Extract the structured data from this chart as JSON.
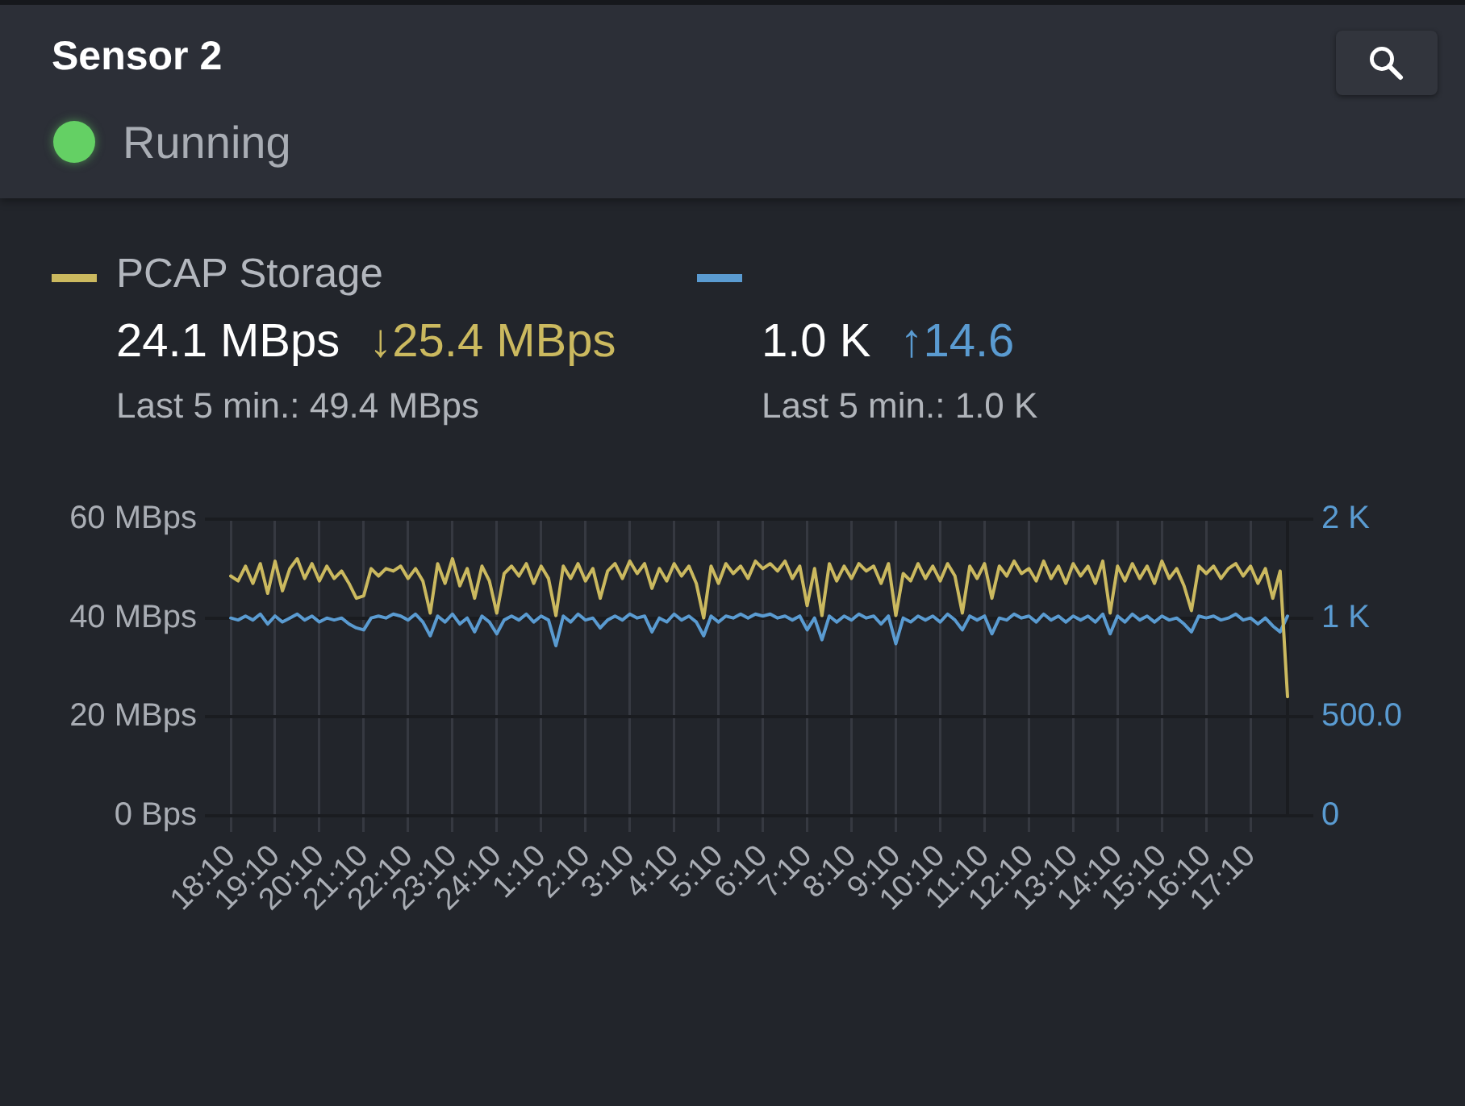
{
  "chart_data": {
    "type": "line",
    "title": "Sensor 2",
    "subtitle": "Running",
    "annotations": [
      "24.1 MBps",
      "↓25.4 MBps",
      "Last 5 min.: 49.4 MBps",
      "1.0 K",
      "↑14.6",
      "Last 5 min.: 1.0 K"
    ],
    "categories": [
      "18:10",
      null,
      null,
      null,
      null,
      null,
      "19:10",
      null,
      null,
      null,
      null,
      null,
      "20:10",
      null,
      null,
      null,
      null,
      null,
      "21:10",
      null,
      null,
      null,
      null,
      null,
      "22:10",
      null,
      null,
      null,
      null,
      null,
      "23:10",
      null,
      null,
      null,
      null,
      null,
      "24:10",
      null,
      null,
      null,
      null,
      null,
      "1:10",
      null,
      null,
      null,
      null,
      null,
      "2:10",
      null,
      null,
      null,
      null,
      null,
      "3:10",
      null,
      null,
      null,
      null,
      null,
      "4:10",
      null,
      null,
      null,
      null,
      null,
      "5:10",
      null,
      null,
      null,
      null,
      null,
      "6:10",
      null,
      null,
      null,
      null,
      null,
      "7:10",
      null,
      null,
      null,
      null,
      null,
      "8:10",
      null,
      null,
      null,
      null,
      null,
      "9:10",
      null,
      null,
      null,
      null,
      null,
      "10:10",
      null,
      null,
      null,
      null,
      null,
      "11:10",
      null,
      null,
      null,
      null,
      null,
      "12:10",
      null,
      null,
      null,
      null,
      null,
      "13:10",
      null,
      null,
      null,
      null,
      null,
      "14:10",
      null,
      null,
      null,
      null,
      null,
      "15:10",
      null,
      null,
      null,
      null,
      null,
      "16:10",
      null,
      null,
      null,
      null,
      null,
      "17:10",
      null,
      null,
      null,
      null,
      null
    ],
    "ylim": [
      0,
      60
    ],
    "yticks": [
      {
        "value": 0,
        "label": "0 Bps"
      },
      {
        "value": 20,
        "label": "20 MBps"
      },
      {
        "value": 40,
        "label": "40 MBps"
      },
      {
        "value": 60,
        "label": "60 MBps"
      }
    ],
    "y2lim": [
      0,
      1500
    ],
    "y2ticks": [
      0,
      {
        "value": 500,
        "label": "500.0"
      },
      {
        "value": 1000,
        "label": "1 K"
      },
      {
        "value": 1500,
        "label": "2 K"
      }
    ],
    "series": [
      {
        "name": "PCAP Storage",
        "color": "#cbb95f",
        "values": [
          48.5,
          47.5,
          50.5,
          47,
          51,
          45,
          51.5,
          45.5,
          50,
          52,
          48,
          51,
          47.5,
          50.5,
          48,
          49.5,
          47,
          44,
          44.5,
          50,
          48.5,
          50,
          49.5,
          50.5,
          48,
          50,
          47.5,
          41,
          51,
          47,
          52,
          46.5,
          50,
          44,
          50.5,
          47.5,
          41,
          49,
          50.5,
          48.5,
          51,
          47,
          50.5,
          48,
          40.5,
          50.5,
          48,
          51,
          47.5,
          50,
          44,
          49.5,
          51,
          48,
          51.5,
          49,
          51,
          46,
          50,
          47.5,
          51,
          48.5,
          50.5,
          47,
          40,
          50.5,
          47,
          51,
          49,
          50.5,
          48,
          51.5,
          50,
          51,
          49.5,
          51.5,
          48,
          50.5,
          42.5,
          50,
          40.5,
          51,
          47.5,
          50.5,
          48,
          51,
          49.5,
          50.5,
          47,
          51,
          40.5,
          49,
          47.5,
          51,
          48,
          50.5,
          47.5,
          51,
          48.5,
          41,
          50.5,
          48,
          51,
          44,
          50.5,
          48.5,
          51.5,
          49,
          50,
          47.5,
          51.5,
          48,
          50.5,
          47,
          51,
          48.5,
          50.5,
          47,
          51.5,
          41,
          50.5,
          47.5,
          51,
          48,
          50.5,
          47,
          51.5,
          48,
          50,
          46.5,
          41.5,
          50.5,
          49,
          50.5,
          48,
          50,
          51,
          48.5,
          50.5,
          47,
          50,
          44,
          49.5,
          24.1
        ]
      },
      {
        "color": "#5a9bd1",
        "axis": "y2",
        "values": [
          1000,
          990,
          1010,
          990,
          1020,
          970,
          1010,
          980,
          1000,
          1020,
          990,
          1010,
          980,
          1000,
          990,
          1000,
          970,
          950,
          940,
          1000,
          1010,
          1000,
          1020,
          1010,
          990,
          1020,
          980,
          910,
          1010,
          980,
          1020,
          970,
          1000,
          930,
          1010,
          980,
          920,
          990,
          1010,
          990,
          1020,
          980,
          1010,
          990,
          860,
          1010,
          980,
          1020,
          990,
          1000,
          950,
          990,
          1010,
          990,
          1020,
          1000,
          1010,
          930,
          1000,
          980,
          1020,
          990,
          1010,
          980,
          910,
          1010,
          980,
          1010,
          1000,
          1020,
          1000,
          1020,
          1010,
          1020,
          1000,
          1010,
          990,
          1010,
          940,
          1000,
          890,
          1010,
          980,
          1010,
          990,
          1020,
          1000,
          1010,
          970,
          1010,
          870,
          1000,
          980,
          1010,
          990,
          1010,
          980,
          1020,
          990,
          940,
          1010,
          990,
          1010,
          920,
          1000,
          990,
          1020,
          1000,
          1010,
          980,
          1020,
          990,
          1010,
          980,
          1010,
          990,
          1010,
          980,
          1020,
          920,
          1010,
          980,
          1020,
          990,
          1010,
          980,
          1010,
          990,
          1000,
          970,
          930,
          1010,
          1000,
          1010,
          990,
          1000,
          1020,
          990,
          1000,
          970,
          1000,
          960,
          930,
          1010
        ]
      }
    ],
    "grid": true,
    "legend": "top left",
    "marker": "none",
    "line_style": "solid"
  }
}
